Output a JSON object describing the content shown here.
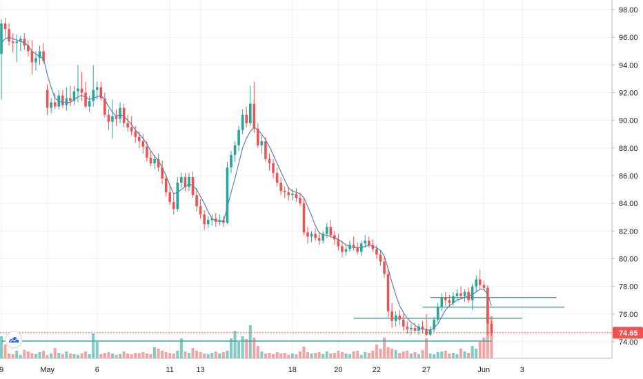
{
  "chart_data": {
    "type": "candlestick",
    "ylim": [
      72.8,
      98.7
    ],
    "y_ticks": [
      "74.00",
      "76.00",
      "78.00",
      "80.00",
      "82.00",
      "84.00",
      "86.00",
      "88.00",
      "90.00",
      "92.00",
      "94.00",
      "96.00",
      "98.00"
    ],
    "x_ticks": [
      "9",
      "May",
      "6",
      "11",
      "13",
      "18",
      "20",
      "22",
      "27",
      "Jun",
      "3"
    ],
    "last_price": "74.65",
    "grid": true,
    "colors": {
      "up": "#26a69a",
      "down": "#ef5350",
      "up_vol": "#80cbc4",
      "down_vol": "#f3a4a2",
      "ma": "#5b7fb0",
      "levels": "#26a69a",
      "last": "#ef5350"
    },
    "candles": [
      [
        94.8,
        97.3,
        91.5,
        97.0
      ],
      [
        97.0,
        97.4,
        96.0,
        96.6
      ],
      [
        96.6,
        97.0,
        95.4,
        95.7
      ],
      [
        95.7,
        96.3,
        94.9,
        95.6
      ],
      [
        95.6,
        96.2,
        94.2,
        95.7
      ],
      [
        95.7,
        96.1,
        95.0,
        95.9
      ],
      [
        95.9,
        96.3,
        95.1,
        95.4
      ],
      [
        95.4,
        95.8,
        94.6,
        95.0
      ],
      [
        95.0,
        95.8,
        93.3,
        94.2
      ],
      [
        94.2,
        95.0,
        93.6,
        94.5
      ],
      [
        94.5,
        95.4,
        94.0,
        95.0
      ],
      [
        95.0,
        95.6,
        94.1,
        94.3
      ],
      [
        92.2,
        92.6,
        90.4,
        90.9
      ],
      [
        90.9,
        91.6,
        90.5,
        91.3
      ],
      [
        91.3,
        92.0,
        90.8,
        91.0
      ],
      [
        91.0,
        92.2,
        90.8,
        91.8
      ],
      [
        91.8,
        92.2,
        90.9,
        91.1
      ],
      [
        91.1,
        92.4,
        90.7,
        91.6
      ],
      [
        91.6,
        92.5,
        91.0,
        91.4
      ],
      [
        91.4,
        92.5,
        91.1,
        92.1
      ],
      [
        92.1,
        94.0,
        91.3,
        92.3
      ],
      [
        92.3,
        93.5,
        91.4,
        92.0
      ],
      [
        92.0,
        92.8,
        90.9,
        91.0
      ],
      [
        91.0,
        91.8,
        90.6,
        91.4
      ],
      [
        91.4,
        94.0,
        91.0,
        92.2
      ],
      [
        92.2,
        92.8,
        91.5,
        92.4
      ],
      [
        92.4,
        92.8,
        91.4,
        91.6
      ],
      [
        91.6,
        92.0,
        90.2,
        90.4
      ],
      [
        90.4,
        90.8,
        89.3,
        89.9
      ],
      [
        89.9,
        91.5,
        88.7,
        90.3
      ],
      [
        90.3,
        90.8,
        89.6,
        90.1
      ],
      [
        90.1,
        91.3,
        89.8,
        90.9
      ],
      [
        90.9,
        91.2,
        89.5,
        89.8
      ],
      [
        89.8,
        90.4,
        89.2,
        89.5
      ],
      [
        89.5,
        90.3,
        88.9,
        89.2
      ],
      [
        89.2,
        89.6,
        88.4,
        88.8
      ],
      [
        88.8,
        89.2,
        88.0,
        88.5
      ],
      [
        88.5,
        89.0,
        87.6,
        88.1
      ],
      [
        88.1,
        88.5,
        87.0,
        87.3
      ],
      [
        87.3,
        87.8,
        86.7,
        86.9
      ],
      [
        86.9,
        87.5,
        86.5,
        87.2
      ],
      [
        87.2,
        87.6,
        86.3,
        86.6
      ],
      [
        86.6,
        87.1,
        85.4,
        85.8
      ],
      [
        85.8,
        86.1,
        84.5,
        84.8
      ],
      [
        84.8,
        85.3,
        83.9,
        84.1
      ],
      [
        84.1,
        84.7,
        83.2,
        83.6
      ],
      [
        83.6,
        85.9,
        83.4,
        85.5
      ],
      [
        85.5,
        86.2,
        85.1,
        85.9
      ],
      [
        85.9,
        86.2,
        84.9,
        85.2
      ],
      [
        85.2,
        86.2,
        84.9,
        85.9
      ],
      [
        85.9,
        86.3,
        84.4,
        84.6
      ],
      [
        84.6,
        85.1,
        83.4,
        83.8
      ],
      [
        83.8,
        84.3,
        82.9,
        83.2
      ],
      [
        83.2,
        83.5,
        82.1,
        82.5
      ],
      [
        82.5,
        83.1,
        82.2,
        82.8
      ],
      [
        82.8,
        83.2,
        82.4,
        82.9
      ],
      [
        82.9,
        83.3,
        82.3,
        82.7
      ],
      [
        82.7,
        83.2,
        82.4,
        82.8
      ],
      [
        82.8,
        83.1,
        82.3,
        82.6
      ],
      [
        82.6,
        87.0,
        82.5,
        86.6
      ],
      [
        86.6,
        87.8,
        86.2,
        87.5
      ],
      [
        87.5,
        88.5,
        87.0,
        88.2
      ],
      [
        88.2,
        89.6,
        87.8,
        89.3
      ],
      [
        89.3,
        90.8,
        89.0,
        90.4
      ],
      [
        90.4,
        91.0,
        89.5,
        89.8
      ],
      [
        89.8,
        92.5,
        89.6,
        91.2
      ],
      [
        91.2,
        92.8,
        89.1,
        89.4
      ],
      [
        89.4,
        89.8,
        88.0,
        88.2
      ],
      [
        88.2,
        88.9,
        87.6,
        88.5
      ],
      [
        88.5,
        88.8,
        87.0,
        87.2
      ],
      [
        87.2,
        87.6,
        86.4,
        86.9
      ],
      [
        86.9,
        87.2,
        85.8,
        86.2
      ],
      [
        86.2,
        86.6,
        85.2,
        85.5
      ],
      [
        85.5,
        85.9,
        84.6,
        84.9
      ],
      [
        84.9,
        85.2,
        84.4,
        84.8
      ],
      [
        84.8,
        85.2,
        84.2,
        84.6
      ],
      [
        84.6,
        85.0,
        84.2,
        84.7
      ],
      [
        84.7,
        85.1,
        84.1,
        84.4
      ],
      [
        84.4,
        84.8,
        83.8,
        84.0
      ],
      [
        84.0,
        84.4,
        81.7,
        81.9
      ],
      [
        81.9,
        82.3,
        81.1,
        81.6
      ],
      [
        81.6,
        82.0,
        81.2,
        81.8
      ],
      [
        81.8,
        82.2,
        81.3,
        81.5
      ],
      [
        81.5,
        81.9,
        81.0,
        81.3
      ],
      [
        81.3,
        82.0,
        81.1,
        81.8
      ],
      [
        81.8,
        82.6,
        81.5,
        82.3
      ],
      [
        82.3,
        82.8,
        81.5,
        81.7
      ],
      [
        81.7,
        82.0,
        81.0,
        81.4
      ],
      [
        81.4,
        81.8,
        80.6,
        80.9
      ],
      [
        80.9,
        81.3,
        80.1,
        80.5
      ],
      [
        80.5,
        81.0,
        80.2,
        80.7
      ],
      [
        80.7,
        81.3,
        80.5,
        81.0
      ],
      [
        81.0,
        81.6,
        80.6,
        80.8
      ],
      [
        80.8,
        81.2,
        80.3,
        80.5
      ],
      [
        80.5,
        81.3,
        80.2,
        81.1
      ],
      [
        81.1,
        81.7,
        80.8,
        81.3
      ],
      [
        81.3,
        81.6,
        80.8,
        81.0
      ],
      [
        81.0,
        81.4,
        80.5,
        80.7
      ],
      [
        80.7,
        81.0,
        80.0,
        80.3
      ],
      [
        80.3,
        80.6,
        79.5,
        79.8
      ],
      [
        79.8,
        80.1,
        78.6,
        78.9
      ],
      [
        78.9,
        79.2,
        75.8,
        76.2
      ],
      [
        76.2,
        76.8,
        75.0,
        75.5
      ],
      [
        75.5,
        76.2,
        75.1,
        75.9
      ],
      [
        75.9,
        76.3,
        75.2,
        75.6
      ],
      [
        75.6,
        76.0,
        74.8,
        75.1
      ],
      [
        75.1,
        75.5,
        74.6,
        74.9
      ],
      [
        74.9,
        75.3,
        74.5,
        75.0
      ],
      [
        75.0,
        75.4,
        74.6,
        74.8
      ],
      [
        74.8,
        75.3,
        74.5,
        75.1
      ],
      [
        75.1,
        75.5,
        74.6,
        74.9
      ],
      [
        74.9,
        76.0,
        74.4,
        74.5
      ],
      [
        74.5,
        75.1,
        74.4,
        74.9
      ],
      [
        74.9,
        75.8,
        74.7,
        75.6
      ],
      [
        75.6,
        76.8,
        75.4,
        76.5
      ],
      [
        76.5,
        77.5,
        76.2,
        77.2
      ],
      [
        77.2,
        77.6,
        76.6,
        77.0
      ],
      [
        77.0,
        77.4,
        76.5,
        76.8
      ],
      [
        76.8,
        77.6,
        76.6,
        77.3
      ],
      [
        77.3,
        77.8,
        77.0,
        77.5
      ],
      [
        77.5,
        78.0,
        77.1,
        77.3
      ],
      [
        77.3,
        77.8,
        76.9,
        77.6
      ],
      [
        77.6,
        77.9,
        76.8,
        77.0
      ],
      [
        77.0,
        78.2,
        76.3,
        78.0
      ],
      [
        78.0,
        78.8,
        77.6,
        78.5
      ],
      [
        78.5,
        79.2,
        77.8,
        78.1
      ],
      [
        78.1,
        78.4,
        77.8,
        77.9
      ],
      [
        77.9,
        78.1,
        74.5,
        75.3
      ],
      [
        75.3,
        75.5,
        74.4,
        74.65
      ]
    ],
    "volume": [
      64,
      40,
      14,
      12,
      22,
      10,
      25,
      20,
      15,
      12,
      18,
      22,
      10,
      14,
      30,
      16,
      12,
      20,
      14,
      12,
      10,
      14,
      20,
      12,
      72,
      48,
      12,
      16,
      18,
      14,
      10,
      12,
      20,
      14,
      12,
      16,
      15,
      18,
      14,
      12,
      32,
      28,
      22,
      18,
      15,
      14,
      22,
      58,
      20,
      16,
      30,
      22,
      18,
      14,
      12,
      16,
      20,
      14,
      18,
      22,
      58,
      80,
      48,
      64,
      56,
      96,
      60,
      36,
      20,
      14,
      16,
      12,
      18,
      14,
      16,
      10,
      14,
      12,
      20,
      34,
      18,
      14,
      16,
      18,
      12,
      20,
      14,
      16,
      22,
      18,
      14,
      12,
      20,
      22,
      10,
      18,
      16,
      22,
      40,
      28,
      60,
      32,
      28,
      24,
      16,
      20,
      22,
      14,
      18,
      12,
      24,
      58,
      14,
      12,
      18,
      20,
      22,
      14,
      16,
      12,
      28,
      20,
      16,
      36,
      28,
      48,
      60,
      150,
      122
    ],
    "ma": [
      95.6,
      95.9,
      96.0,
      95.9,
      95.8,
      95.7,
      95.6,
      95.4,
      95.0,
      94.8,
      94.6,
      94.5,
      93.3,
      92.4,
      91.6,
      91.4,
      91.3,
      91.3,
      91.3,
      91.5,
      91.7,
      91.8,
      91.7,
      91.5,
      91.6,
      91.7,
      91.8,
      91.5,
      91.0,
      90.6,
      90.3,
      90.4,
      90.3,
      90.0,
      89.7,
      89.3,
      89.0,
      88.7,
      88.3,
      87.8,
      87.4,
      87.1,
      86.6,
      86.0,
      85.3,
      84.7,
      84.8,
      85.0,
      85.2,
      85.4,
      85.3,
      85.0,
      84.5,
      84.0,
      83.4,
      82.9,
      82.7,
      82.7,
      82.7,
      83.7,
      84.8,
      85.8,
      86.9,
      88.0,
      88.7,
      89.2,
      89.5,
      89.3,
      89.0,
      88.6,
      88.1,
      87.5,
      86.9,
      86.3,
      85.7,
      85.1,
      84.9,
      84.8,
      84.7,
      84.4,
      83.8,
      83.1,
      82.4,
      81.9,
      81.7,
      81.7,
      81.6,
      81.5,
      81.4,
      81.2,
      81.0,
      80.9,
      80.8,
      80.8,
      80.8,
      80.9,
      81.0,
      80.9,
      80.8,
      80.6,
      80.2,
      79.3,
      78.3,
      77.4,
      76.6,
      76.1,
      75.7,
      75.4,
      75.2,
      75.0,
      74.9,
      74.9,
      74.8,
      75.0,
      75.3,
      75.8,
      76.3,
      76.6,
      76.8,
      77.0,
      77.1,
      77.2,
      77.3,
      77.4,
      77.6,
      77.8,
      77.8,
      77.4,
      76.6
    ],
    "level_lines": [
      {
        "y": 77.2,
        "x_start": 112,
        "x_end": 145
      },
      {
        "y": 76.5,
        "x_start": 110,
        "x_end": 147
      },
      {
        "y": 75.7,
        "x_start": 92,
        "x_end": 136
      },
      {
        "y": 74.05,
        "x_start": 0,
        "x_end": 128
      }
    ],
    "x_tick_bar_index": [
      0,
      12,
      25,
      44,
      52,
      76,
      88,
      98,
      111,
      126,
      136
    ]
  }
}
